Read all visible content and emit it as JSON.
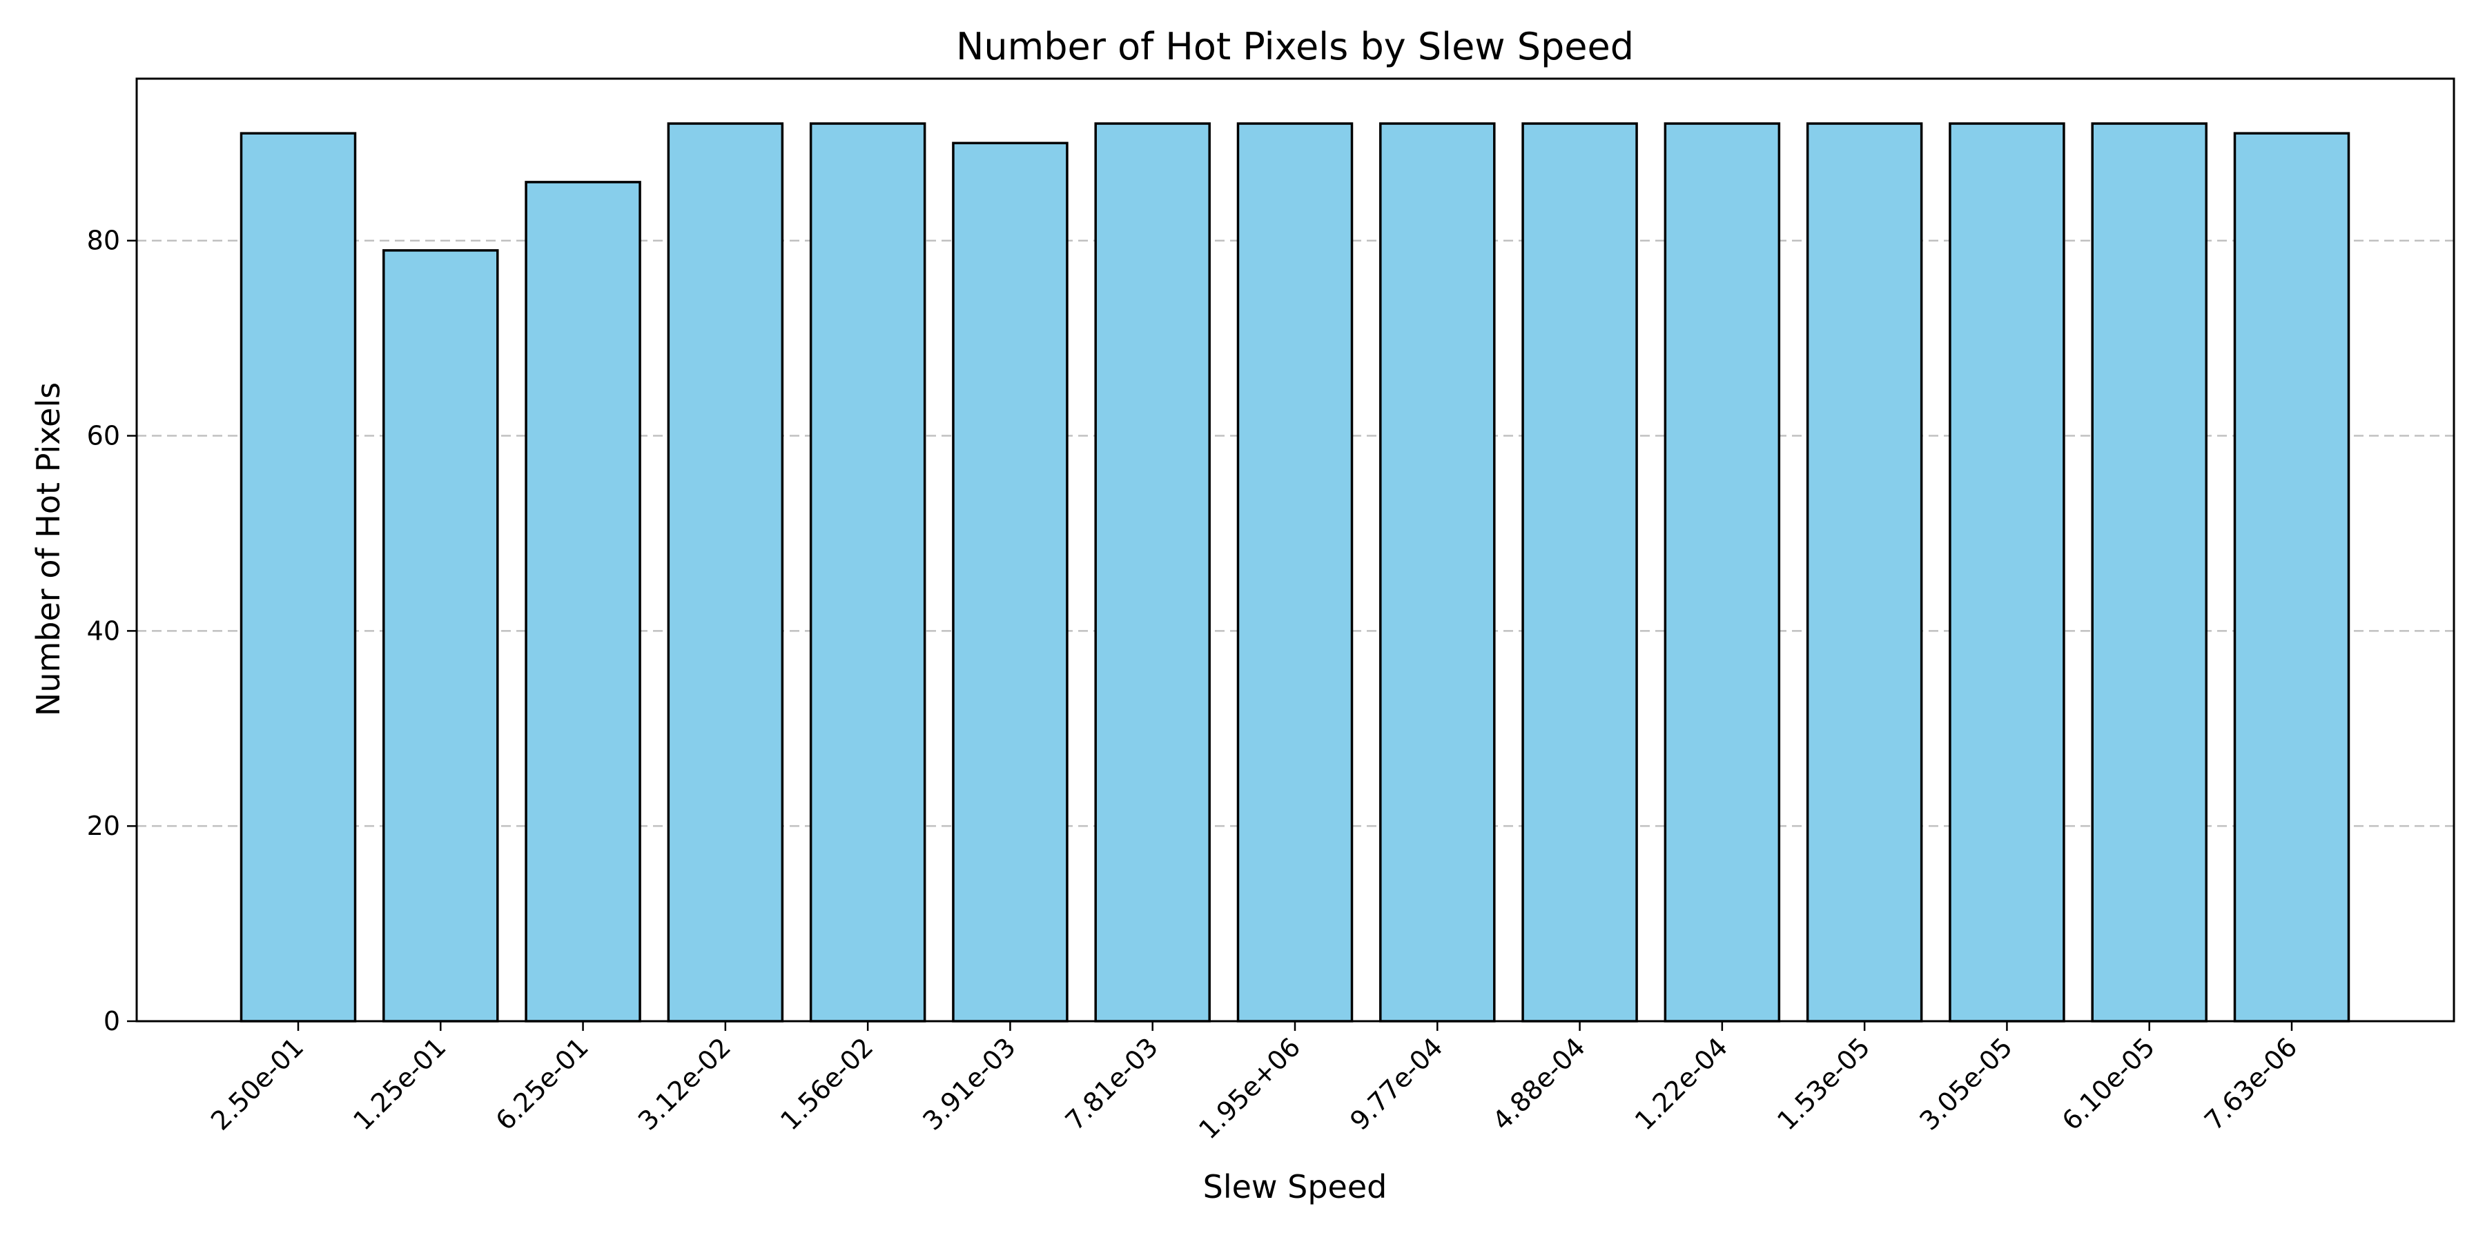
{
  "chart_data": {
    "type": "bar",
    "title": "Number of Hot Pixels by Slew Speed",
    "xlabel": "Slew Speed",
    "ylabel": "Number of Hot Pixels",
    "categories": [
      "2.50e-01",
      "1.25e-01",
      "6.25e-01",
      "3.12e-02",
      "1.56e-02",
      "3.91e-03",
      "7.81e-03",
      "1.95e+06",
      "9.77e-04",
      "4.88e-04",
      "1.22e-04",
      "1.53e-05",
      "3.05e-05",
      "6.10e-05",
      "7.63e-06"
    ],
    "values": [
      91,
      79,
      86,
      92,
      92,
      90,
      92,
      92,
      92,
      92,
      92,
      92,
      92,
      92,
      91
    ],
    "ylim": [
      0,
      96.6
    ],
    "yticks": [
      "0",
      "20",
      "40",
      "60",
      "80"
    ],
    "grid": "y-axis dashed",
    "bar_color": "#87CEEB",
    "edge_color": "#000000"
  }
}
